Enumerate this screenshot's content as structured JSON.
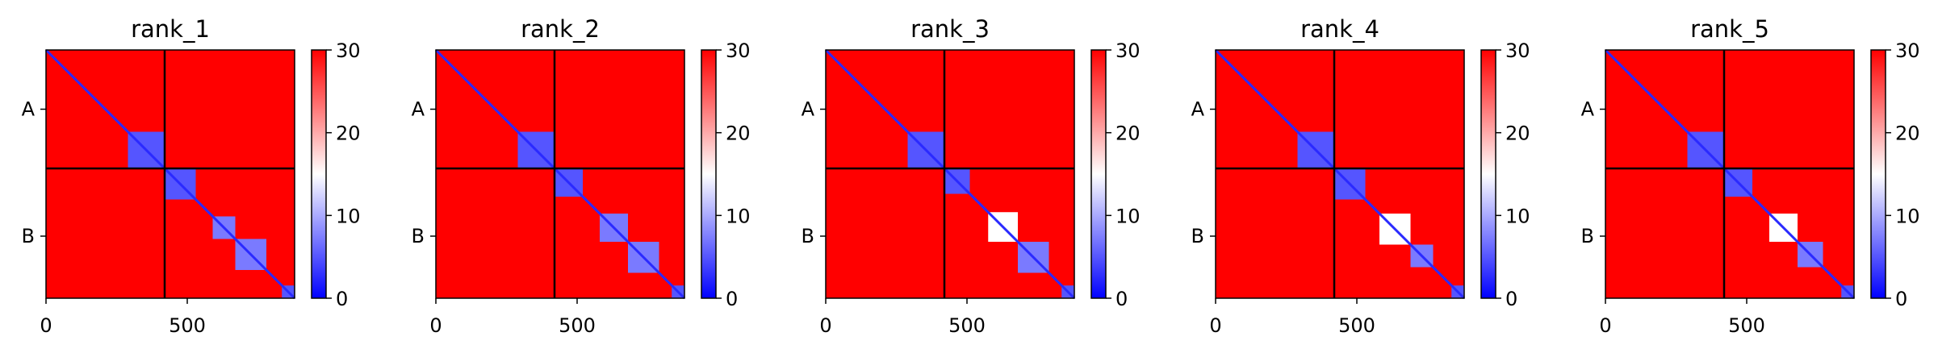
{
  "chart_data": {
    "type": "heatmap",
    "colormap": {
      "name": "bwr",
      "low": "#0000ff",
      "mid": "#ffffff",
      "high": "#ff0000",
      "vmin": 0,
      "vmax": 30
    },
    "colorbar_ticks": [
      "0",
      "10",
      "20",
      "30"
    ],
    "x_ticks": [
      {
        "value": 0,
        "label": "0"
      },
      {
        "value": 500,
        "label": "500"
      }
    ],
    "y_ticks": [
      {
        "value": 210,
        "label": "A"
      },
      {
        "value": 660,
        "label": "B"
      }
    ],
    "x_range": [
      0,
      880
    ],
    "y_range": [
      0,
      880
    ],
    "chain_boundary": 420,
    "grid": false,
    "panels": [
      {
        "title": "rank_1",
        "blocks": [
          {
            "start": 290,
            "end": 420,
            "level": 2
          },
          {
            "start": 420,
            "end": 530,
            "level": 2
          },
          {
            "start": 590,
            "end": 670,
            "level": 3
          },
          {
            "start": 670,
            "end": 780,
            "level": 3
          },
          {
            "start": 835,
            "end": 880,
            "level": 2
          }
        ]
      },
      {
        "title": "rank_2",
        "blocks": [
          {
            "start": 290,
            "end": 420,
            "level": 2
          },
          {
            "start": 420,
            "end": 520,
            "level": 2
          },
          {
            "start": 580,
            "end": 680,
            "level": 3
          },
          {
            "start": 680,
            "end": 790,
            "level": 3
          },
          {
            "start": 835,
            "end": 880,
            "level": 2
          }
        ]
      },
      {
        "title": "rank_3",
        "blocks": [
          {
            "start": 290,
            "end": 420,
            "level": 2
          },
          {
            "start": 420,
            "end": 510,
            "level": 2
          },
          {
            "start": 575,
            "end": 680,
            "level": 5
          },
          {
            "start": 680,
            "end": 790,
            "level": 3
          },
          {
            "start": 835,
            "end": 880,
            "level": 2
          }
        ]
      },
      {
        "title": "rank_4",
        "blocks": [
          {
            "start": 290,
            "end": 420,
            "level": 2
          },
          {
            "start": 420,
            "end": 530,
            "level": 2
          },
          {
            "start": 580,
            "end": 690,
            "level": 5
          },
          {
            "start": 690,
            "end": 770,
            "level": 3
          },
          {
            "start": 835,
            "end": 880,
            "level": 2
          }
        ]
      },
      {
        "title": "rank_5",
        "blocks": [
          {
            "start": 290,
            "end": 420,
            "level": 2
          },
          {
            "start": 420,
            "end": 520,
            "level": 2
          },
          {
            "start": 580,
            "end": 680,
            "level": 5
          },
          {
            "start": 680,
            "end": 770,
            "level": 3
          },
          {
            "start": 835,
            "end": 880,
            "level": 2
          }
        ]
      }
    ]
  }
}
